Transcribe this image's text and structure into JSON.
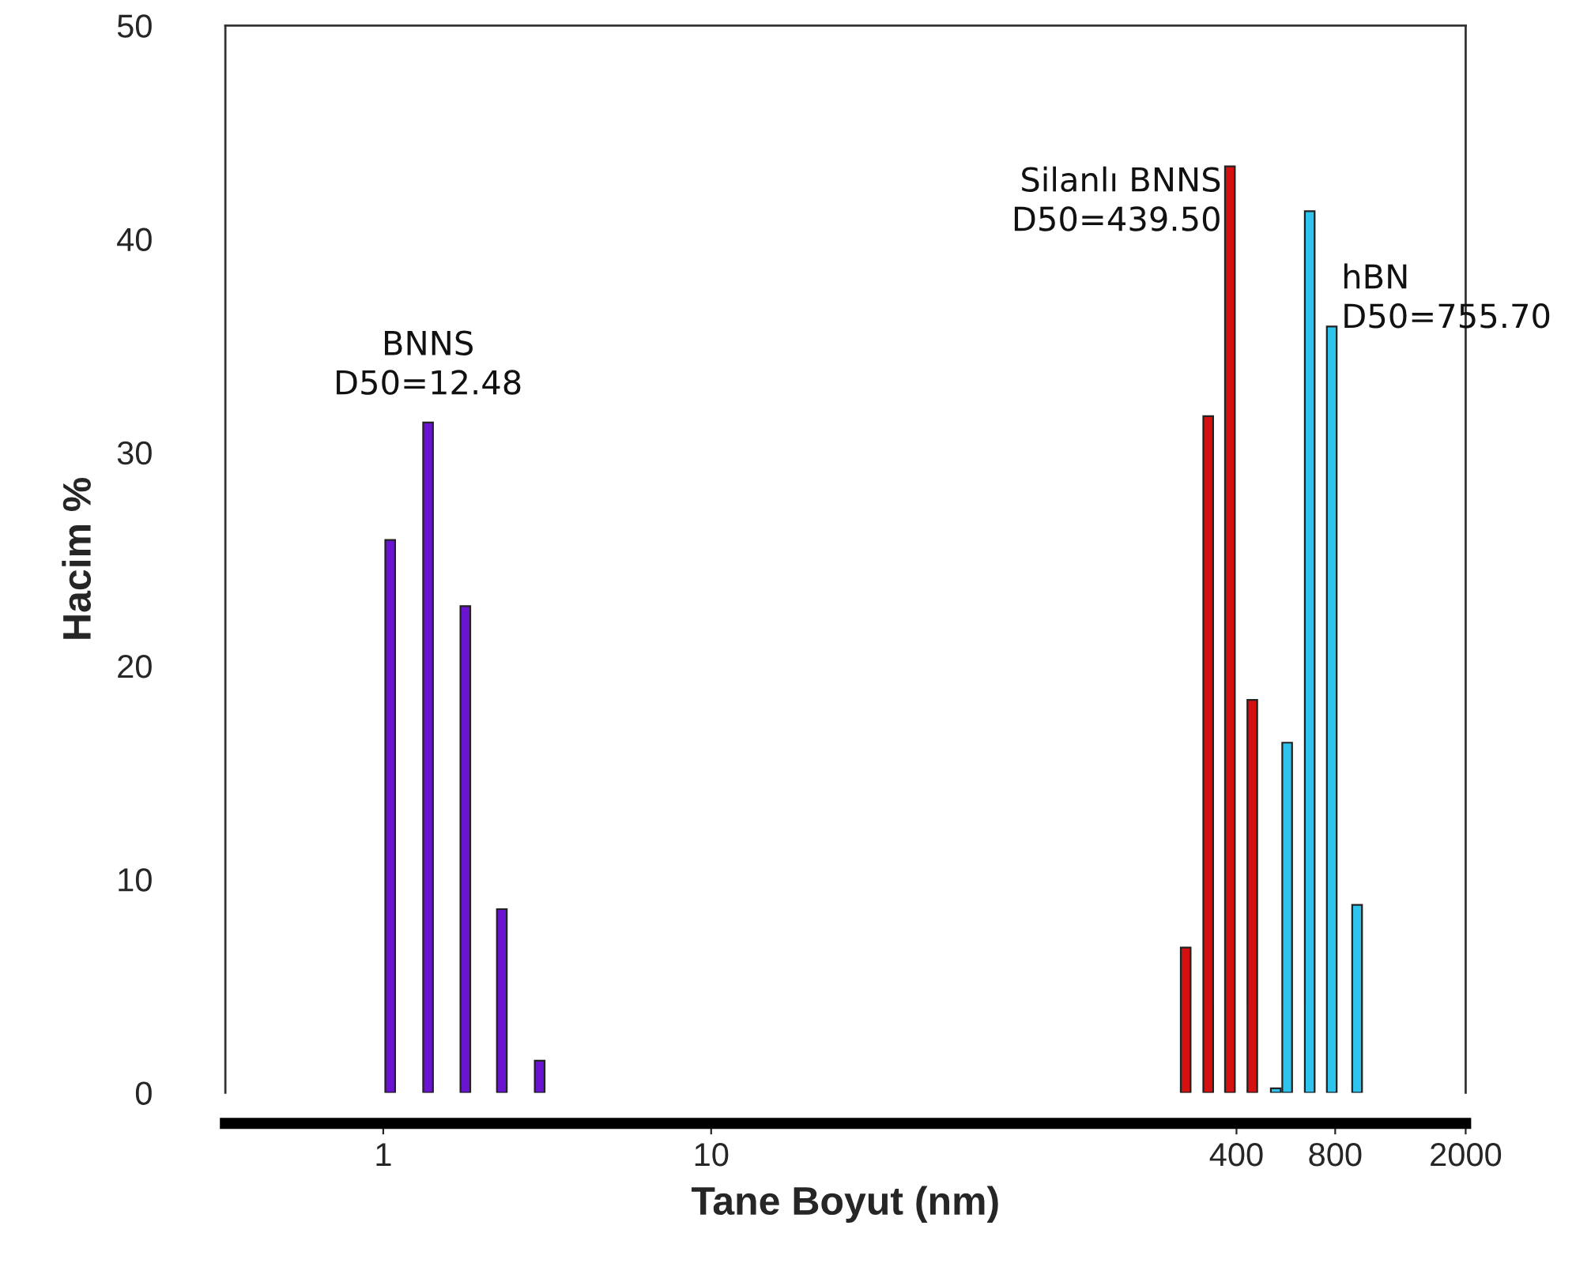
{
  "chart_data": {
    "type": "bar",
    "xlabel": "Tane Boyut (nm)",
    "ylabel": "Hacim %",
    "log": "x",
    "xlim": [
      0.33,
      2000
    ],
    "xticks": [
      1,
      10,
      400,
      800,
      2000
    ],
    "ylim": [
      0,
      50
    ],
    "yticks": [
      0,
      10,
      20,
      30,
      40,
      50
    ],
    "grid": false,
    "legend": false,
    "series": [
      {
        "name": "BNNS",
        "color": "#6a14d2",
        "x": [
          1.05,
          1.37,
          1.78,
          2.3,
          3.0
        ],
        "values": [
          25.9,
          31.4,
          22.8,
          8.6,
          1.5
        ]
      },
      {
        "name": "Silanlı BNNS",
        "color": "#d41010",
        "x": [
          280,
          328,
          382,
          447
        ],
        "values": [
          6.8,
          31.7,
          43.4,
          18.4
        ]
      },
      {
        "name": "hBN",
        "color": "#2ec4ee",
        "x": [
          527,
          571,
          669,
          781,
          933
        ],
        "values": [
          0.2,
          16.4,
          41.3,
          35.9,
          8.8
        ]
      }
    ],
    "annotations": [
      "D50=12.48",
      "D50=439.50",
      "D50=755.70"
    ]
  }
}
